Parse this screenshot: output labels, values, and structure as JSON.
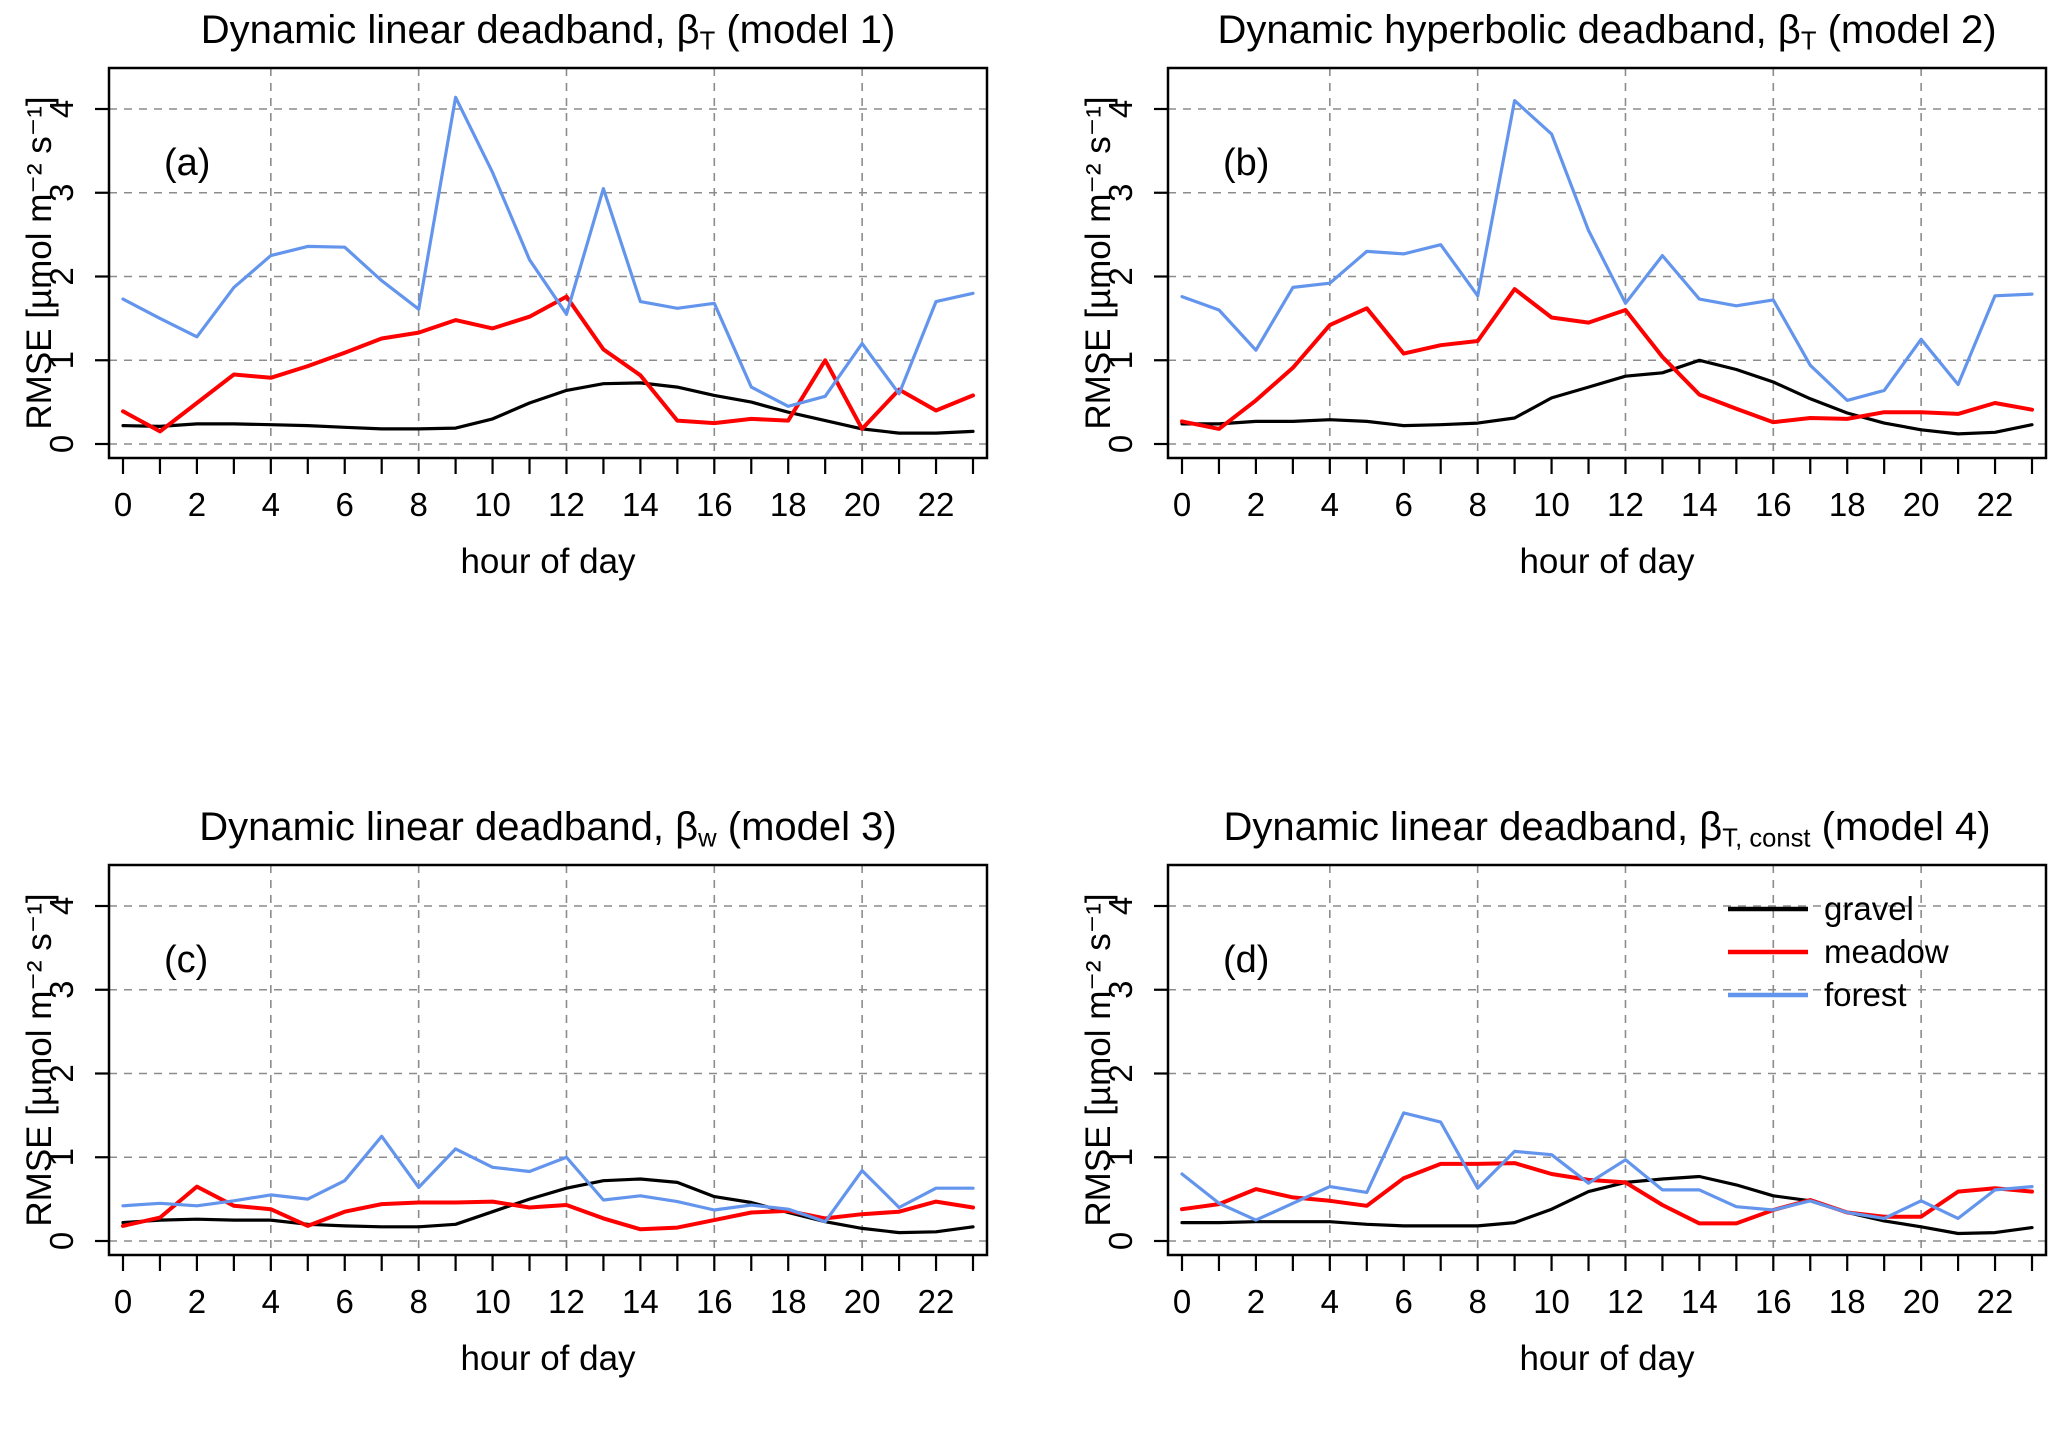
{
  "page": {
    "background": "#ffffff",
    "description": "Four line charts of RMSE vs hour of day for three land covers under four deadband models"
  },
  "axes": {
    "x_label": "hour of day",
    "y_label": "RMSE [µmol m⁻² s⁻¹]",
    "hours": [
      0,
      1,
      2,
      3,
      4,
      5,
      6,
      7,
      8,
      9,
      10,
      11,
      12,
      13,
      14,
      15,
      16,
      17,
      18,
      19,
      20,
      21,
      22,
      23
    ],
    "x_tick_labels": [
      0,
      2,
      4,
      6,
      8,
      10,
      12,
      14,
      16,
      18,
      20,
      22
    ],
    "y_tick_labels": [
      0,
      1,
      2,
      3,
      4
    ],
    "x_gridlines": [
      4,
      8,
      12,
      16,
      20
    ],
    "y_gridlines": [
      0,
      1,
      2,
      3,
      4
    ],
    "ylim": [
      0,
      4.6
    ],
    "grid_style": "gray dashed",
    "legend_position": "top-right of panel d"
  },
  "colors": {
    "gravel": "#000000",
    "meadow": "#ff0000",
    "forest": "#6495ed"
  },
  "legend": {
    "entries": [
      {
        "label": "gravel",
        "color": "#000000"
      },
      {
        "label": "meadow",
        "color": "#ff0000"
      },
      {
        "label": "forest",
        "color": "#6495ed"
      }
    ]
  },
  "chart_data": [
    {
      "type": "line",
      "panel_label": "(a)",
      "title_prefix": "Dynamic linear deadband, β",
      "title_sub": "T",
      "title_suffix": " (model 1)",
      "xlabel": "hour of day",
      "ylabel": "RMSE [µmol m⁻² s⁻¹]",
      "show_legend": false,
      "series": [
        {
          "name": "gravel",
          "color": "#000000",
          "values": [
            0.22,
            0.21,
            0.24,
            0.24,
            0.23,
            0.22,
            0.2,
            0.18,
            0.18,
            0.19,
            0.3,
            0.49,
            0.64,
            0.72,
            0.73,
            0.68,
            0.58,
            0.5,
            0.38,
            0.28,
            0.18,
            0.13,
            0.13,
            0.15
          ]
        },
        {
          "name": "meadow",
          "color": "#ff0000",
          "values": [
            0.39,
            0.15,
            0.49,
            0.83,
            0.79,
            0.93,
            1.09,
            1.26,
            1.33,
            1.48,
            1.38,
            1.52,
            1.76,
            1.13,
            0.82,
            0.28,
            0.25,
            0.3,
            0.28,
            1.0,
            0.18,
            0.65,
            0.4,
            0.58
          ]
        },
        {
          "name": "forest",
          "color": "#6495ed",
          "values": [
            1.73,
            1.5,
            1.28,
            1.87,
            2.25,
            2.36,
            2.35,
            1.95,
            1.61,
            4.14,
            3.24,
            2.2,
            1.55,
            3.05,
            1.7,
            1.62,
            1.68,
            0.68,
            0.45,
            0.57,
            1.2,
            0.6,
            1.7,
            1.8
          ]
        }
      ]
    },
    {
      "type": "line",
      "panel_label": "(b)",
      "title_prefix": "Dynamic hyperbolic deadband, β",
      "title_sub": "T",
      "title_suffix": " (model 2)",
      "xlabel": "hour of day",
      "ylabel": "RMSE [µmol m⁻² s⁻¹]",
      "show_legend": false,
      "series": [
        {
          "name": "gravel",
          "color": "#000000",
          "values": [
            0.24,
            0.24,
            0.27,
            0.27,
            0.29,
            0.27,
            0.22,
            0.23,
            0.25,
            0.31,
            0.55,
            0.68,
            0.81,
            0.85,
            1.0,
            0.89,
            0.74,
            0.54,
            0.37,
            0.25,
            0.17,
            0.12,
            0.14,
            0.23
          ]
        },
        {
          "name": "meadow",
          "color": "#ff0000",
          "values": [
            0.27,
            0.18,
            0.52,
            0.91,
            1.42,
            1.62,
            1.08,
            1.18,
            1.23,
            1.85,
            1.51,
            1.45,
            1.6,
            1.04,
            0.59,
            0.42,
            0.26,
            0.31,
            0.3,
            0.38,
            0.38,
            0.36,
            0.49,
            0.41
          ]
        },
        {
          "name": "forest",
          "color": "#6495ed",
          "values": [
            1.76,
            1.6,
            1.12,
            1.87,
            1.92,
            2.3,
            2.27,
            2.38,
            1.77,
            4.1,
            3.7,
            2.55,
            1.68,
            2.25,
            1.73,
            1.65,
            1.72,
            0.94,
            0.52,
            0.64,
            1.25,
            0.71,
            1.77,
            1.79
          ]
        }
      ]
    },
    {
      "type": "line",
      "panel_label": "(c)",
      "title_prefix": "Dynamic linear deadband, β",
      "title_sub": "w",
      "title_suffix": " (model 3)",
      "xlabel": "hour of day",
      "ylabel": "RMSE [µmol m⁻² s⁻¹]",
      "show_legend": false,
      "series": [
        {
          "name": "gravel",
          "color": "#000000",
          "values": [
            0.22,
            0.25,
            0.26,
            0.25,
            0.25,
            0.2,
            0.18,
            0.17,
            0.17,
            0.2,
            0.35,
            0.5,
            0.63,
            0.72,
            0.74,
            0.7,
            0.53,
            0.46,
            0.34,
            0.23,
            0.15,
            0.1,
            0.11,
            0.17
          ]
        },
        {
          "name": "meadow",
          "color": "#ff0000",
          "values": [
            0.18,
            0.28,
            0.65,
            0.42,
            0.38,
            0.18,
            0.35,
            0.44,
            0.46,
            0.46,
            0.47,
            0.4,
            0.43,
            0.27,
            0.14,
            0.16,
            0.25,
            0.34,
            0.36,
            0.27,
            0.32,
            0.35,
            0.47,
            0.4
          ]
        },
        {
          "name": "forest",
          "color": "#6495ed",
          "values": [
            0.42,
            0.45,
            0.42,
            0.48,
            0.55,
            0.5,
            0.72,
            1.25,
            0.64,
            1.1,
            0.88,
            0.83,
            1.0,
            0.49,
            0.54,
            0.47,
            0.37,
            0.43,
            0.38,
            0.23,
            0.84,
            0.4,
            0.63,
            0.63
          ]
        }
      ]
    },
    {
      "type": "line",
      "panel_label": "(d)",
      "title_prefix": "Dynamic linear deadband, β",
      "title_sub": "T, const",
      "title_suffix": " (model 4)",
      "xlabel": "hour of day",
      "ylabel": "RMSE [µmol m⁻² s⁻¹]",
      "show_legend": true,
      "series": [
        {
          "name": "gravel",
          "color": "#000000",
          "values": [
            0.22,
            0.22,
            0.23,
            0.23,
            0.23,
            0.2,
            0.18,
            0.18,
            0.18,
            0.22,
            0.38,
            0.59,
            0.7,
            0.74,
            0.77,
            0.67,
            0.54,
            0.48,
            0.34,
            0.24,
            0.17,
            0.09,
            0.1,
            0.16
          ]
        },
        {
          "name": "meadow",
          "color": "#ff0000",
          "values": [
            0.38,
            0.44,
            0.62,
            0.52,
            0.48,
            0.42,
            0.75,
            0.92,
            0.92,
            0.93,
            0.8,
            0.73,
            0.7,
            0.43,
            0.21,
            0.21,
            0.37,
            0.49,
            0.34,
            0.29,
            0.29,
            0.59,
            0.63,
            0.59
          ]
        },
        {
          "name": "forest",
          "color": "#6495ed",
          "values": [
            0.8,
            0.45,
            0.25,
            0.45,
            0.65,
            0.58,
            1.53,
            1.42,
            0.63,
            1.07,
            1.03,
            0.69,
            0.97,
            0.61,
            0.61,
            0.41,
            0.37,
            0.48,
            0.34,
            0.27,
            0.48,
            0.27,
            0.61,
            0.65
          ]
        }
      ]
    }
  ]
}
